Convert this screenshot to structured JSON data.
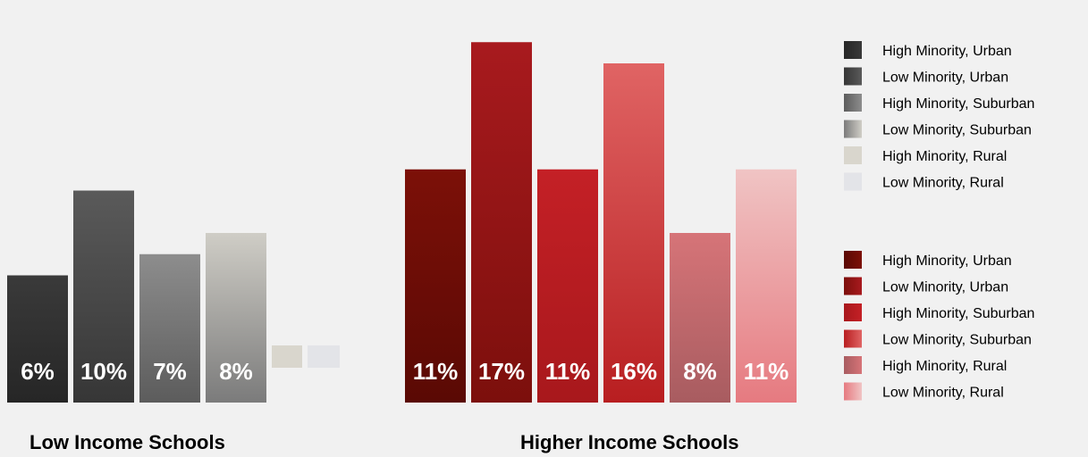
{
  "chart_data": {
    "type": "bar",
    "categories": [
      "High Minority, Urban",
      "Low Minority, Urban",
      "High Minority, Suburban",
      "Low Minority, Suburban",
      "High Minority, Rural",
      "Low Minority, Rural"
    ],
    "groups": [
      {
        "title": "Low Income Schools",
        "values": [
          6,
          10,
          7,
          8,
          1,
          1
        ],
        "labels": [
          "6%",
          "10%",
          "7%",
          "8%",
          "",
          ""
        ],
        "legend": [
          "High Minority, Urban",
          "Low Minority, Urban",
          "High Minority, Suburban",
          "Low Minority, Suburban",
          "High Minority, Rural",
          "Low Minority, Rural"
        ],
        "colors": [
          [
            "#3a3a3a",
            "#262626"
          ],
          [
            "#5a5a5a",
            "#363636"
          ],
          [
            "#8d8d8d",
            "#5c5c5c"
          ],
          [
            "#cfcdc6",
            "#7b7b7b"
          ],
          [
            "#d9d6cd",
            "#d9d6cd"
          ],
          [
            "#e3e4e8",
            "#e3e4e8"
          ]
        ]
      },
      {
        "title": "Higher Income Schools",
        "values": [
          11,
          17,
          11,
          16,
          8,
          11
        ],
        "labels": [
          "11%",
          "17%",
          "11%",
          "16%",
          "8%",
          "11%"
        ],
        "legend": [
          "High Minority, Urban",
          "Low Minority, Urban",
          "High Minority, Suburban",
          "Low Minority, Suburban",
          "High Minority, Rural",
          "Low Minority, Rural"
        ],
        "colors": [
          [
            "#7c1008",
            "#5a0904"
          ],
          [
            "#a81a1e",
            "#7c0f0c"
          ],
          [
            "#c42026",
            "#a8181c"
          ],
          [
            "#e06464",
            "#b81e20"
          ],
          [
            "#d67478",
            "#a85c60"
          ],
          [
            "#f0c4c4",
            "#e67a80"
          ]
        ]
      }
    ]
  }
}
